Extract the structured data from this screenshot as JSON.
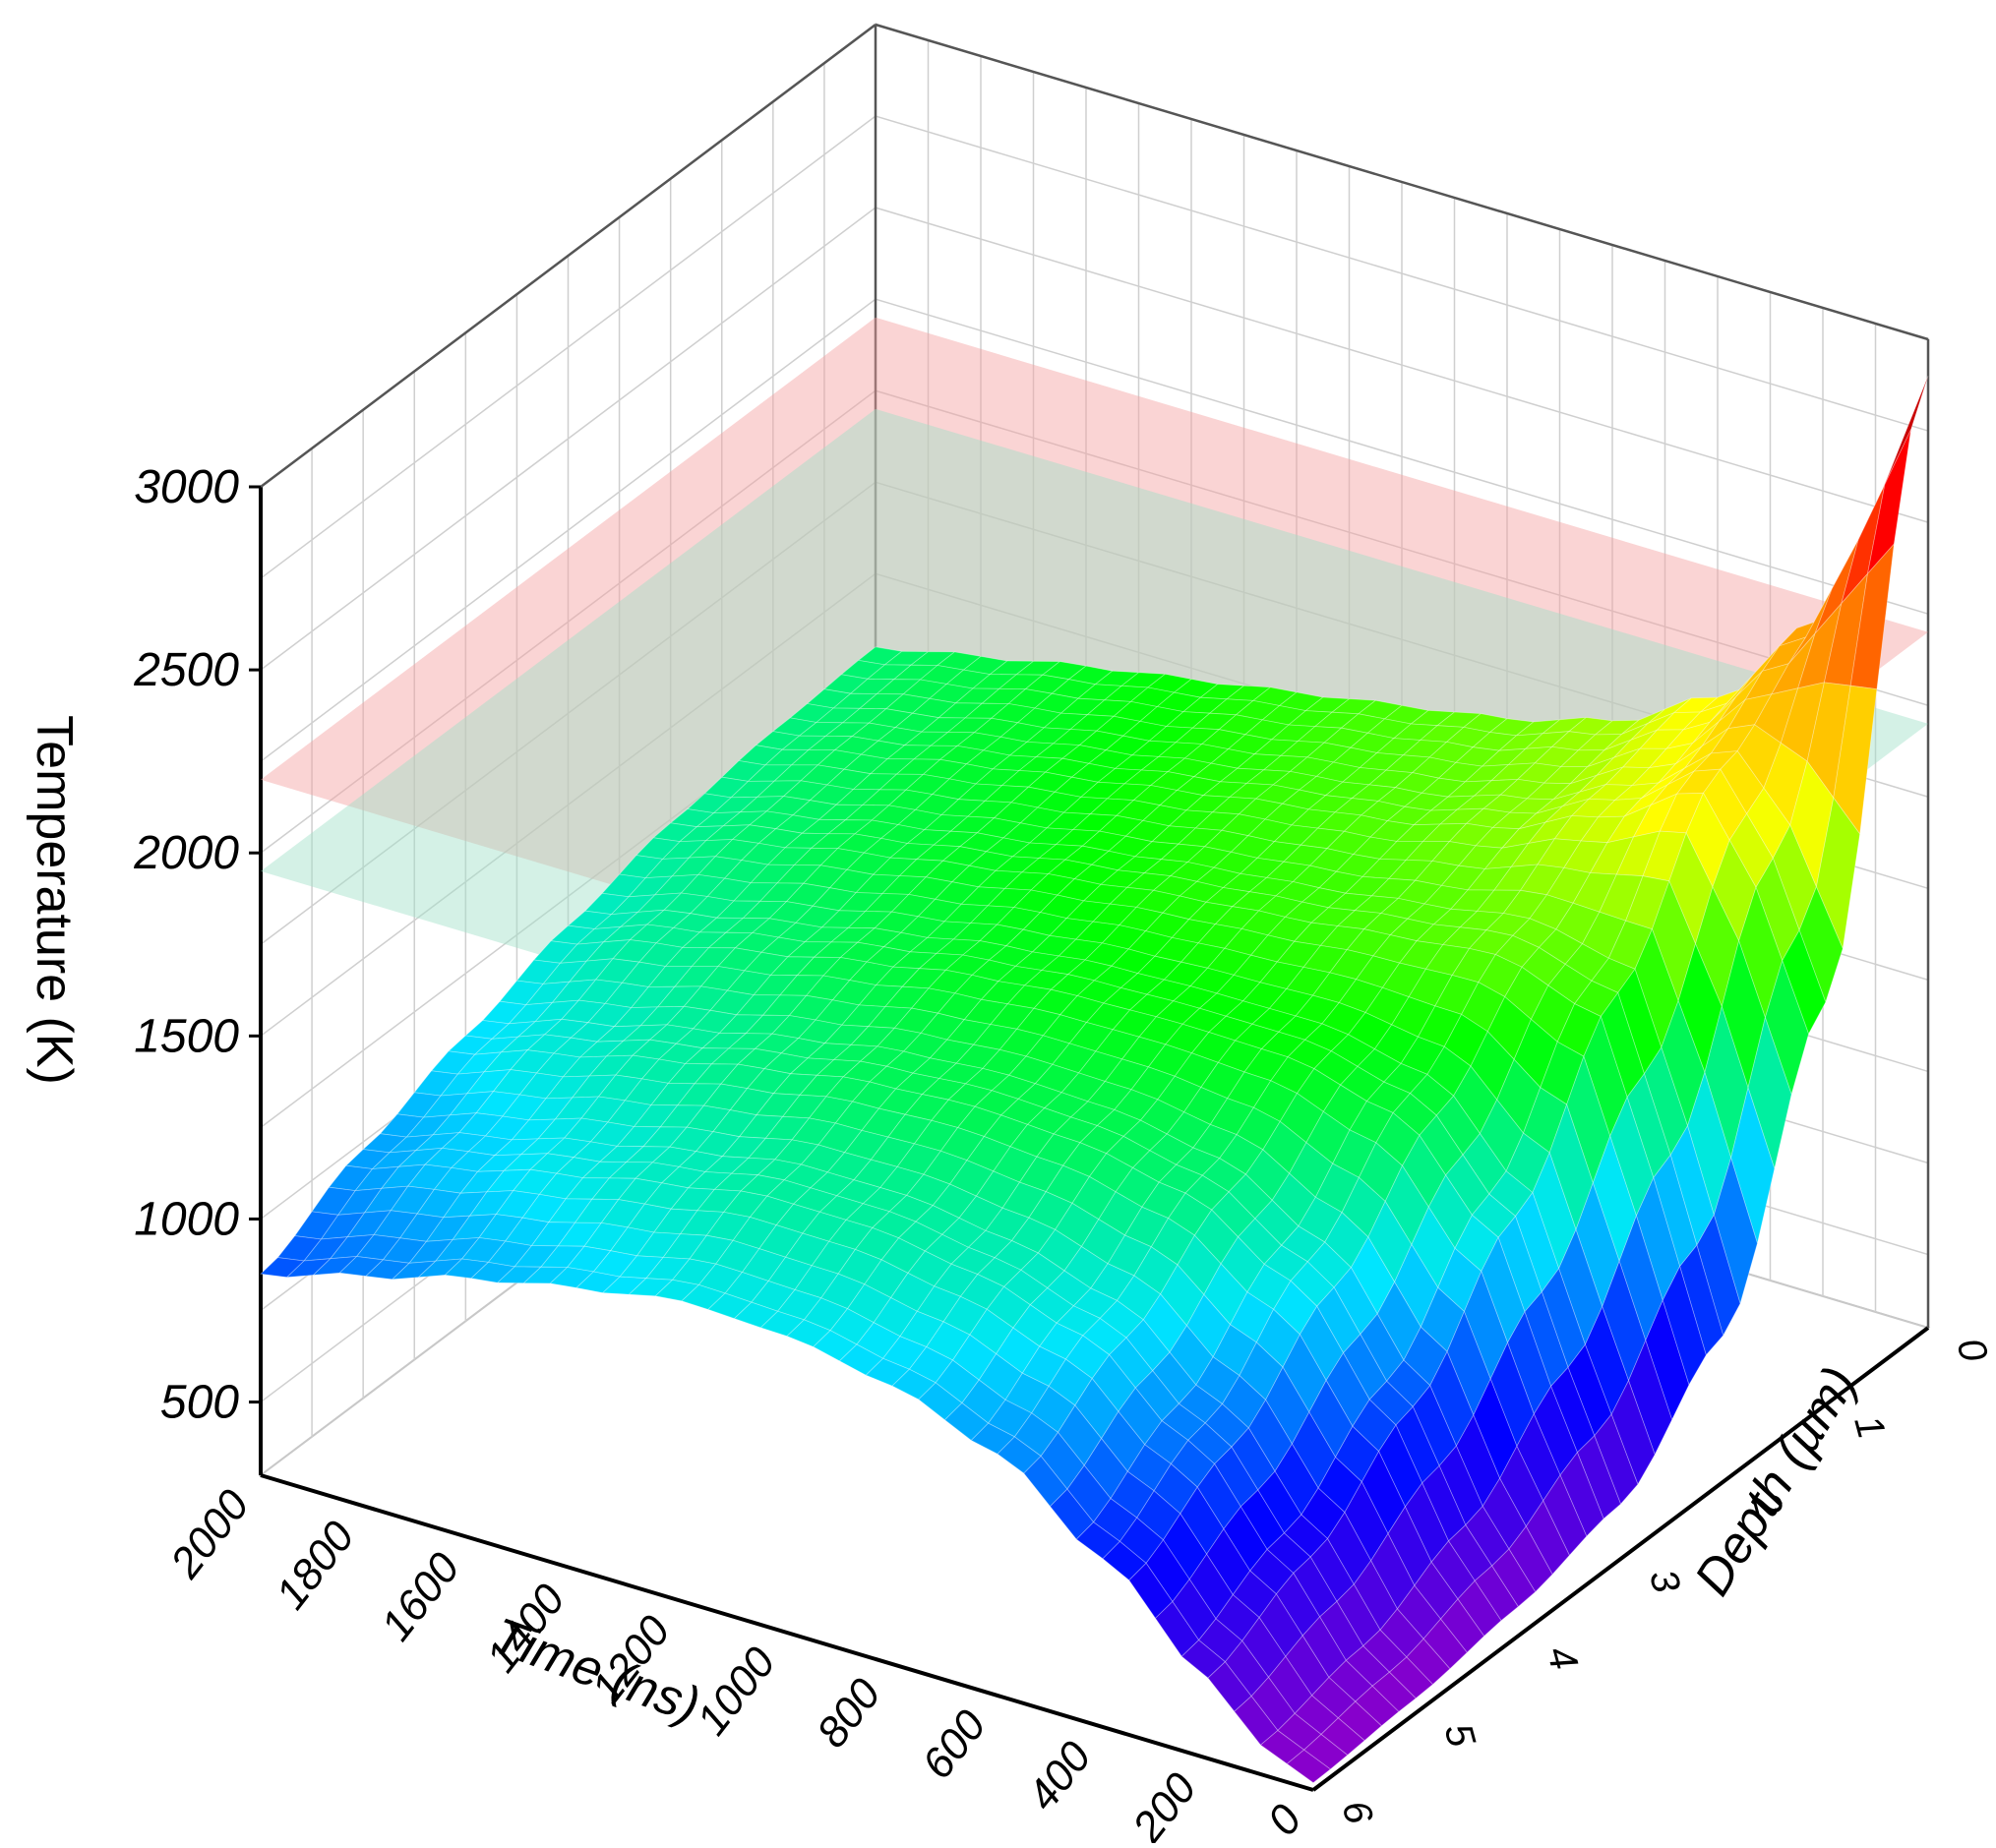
{
  "chart_data": {
    "type": "surface3d",
    "title": "",
    "xlabel": "Time (ns)",
    "ylabel": "Depth (µm)",
    "zlabel": "Temperature (K)",
    "x_ticks": [
      "0",
      "200",
      "400",
      "600",
      "800",
      "1000",
      "1200",
      "1400",
      "1600",
      "1800",
      "2000"
    ],
    "y_ticks": [
      "0",
      "1",
      "2",
      "3",
      "4",
      "5",
      "6"
    ],
    "z_ticks": [
      "500",
      "1000",
      "1500",
      "2000",
      "2500",
      "3000"
    ],
    "xlim": [
      0,
      2000
    ],
    "ylim": [
      0,
      6
    ],
    "zlim": [
      300,
      3000
    ],
    "grid": true,
    "reference_planes": [
      {
        "z": 2200,
        "color": "#f5a0a0"
      },
      {
        "z": 1950,
        "color": "#a0e0c8"
      }
    ],
    "surface_samples": {
      "time_ns": [
        0,
        100,
        200,
        400,
        600,
        800,
        1000,
        1200,
        1400,
        1600,
        1800,
        2000
      ],
      "depth_um": [
        0,
        1,
        2,
        3,
        4,
        5,
        6
      ],
      "temperature_K": [
        [
          2900,
          1400,
          700,
          450,
          380,
          340,
          320
        ],
        [
          2500,
          1750,
          1150,
          780,
          560,
          440,
          380
        ],
        [
          2150,
          1950,
          1550,
          1150,
          840,
          640,
          520
        ],
        [
          1850,
          1780,
          1620,
          1400,
          1150,
          920,
          760
        ],
        [
          1700,
          1660,
          1580,
          1460,
          1300,
          1120,
          960
        ],
        [
          1620,
          1590,
          1540,
          1460,
          1350,
          1200,
          1060
        ],
        [
          1570,
          1550,
          1510,
          1450,
          1360,
          1240,
          1110
        ],
        [
          1520,
          1500,
          1470,
          1420,
          1340,
          1240,
          1120
        ],
        [
          1470,
          1450,
          1420,
          1370,
          1290,
          1190,
          1070
        ],
        [
          1420,
          1400,
          1370,
          1310,
          1230,
          1130,
          1010
        ],
        [
          1360,
          1340,
          1310,
          1250,
          1160,
          1060,
          930
        ],
        [
          1300,
          1280,
          1240,
          1170,
          1080,
          980,
          850
        ]
      ]
    },
    "colormap": [
      "#8800cc",
      "#0000ff",
      "#00e5ff",
      "#00ff00",
      "#ffff00",
      "#ff8800",
      "#ff0000",
      "#8b0000"
    ]
  }
}
